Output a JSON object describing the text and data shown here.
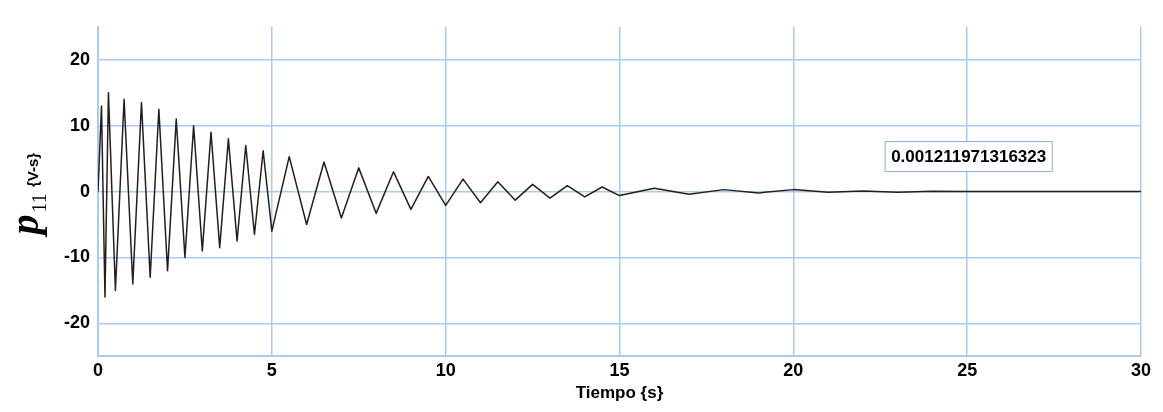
{
  "chart_data": {
    "type": "line",
    "xlabel": "Tiempo {s}",
    "ylabel": "p$_{11}$ {V-s}",
    "x": [
      0,
      0.1,
      0.2,
      0.3,
      0.5,
      0.75,
      1,
      1.25,
      1.5,
      1.75,
      2,
      2.25,
      2.5,
      2.75,
      3,
      3.25,
      3.5,
      3.75,
      4,
      4.25,
      4.5,
      4.75,
      5,
      5.5,
      6,
      6.5,
      7,
      7.5,
      8,
      8.5,
      9,
      9.5,
      10,
      10.5,
      11,
      11.5,
      12,
      12.5,
      13,
      13.5,
      14,
      14.5,
      15,
      16,
      17,
      18,
      19,
      20,
      21,
      22,
      23,
      24,
      25,
      26,
      27,
      28,
      29,
      30
    ],
    "series": [
      {
        "color": "#231f1c",
        "values": [
          0,
          13,
          -16,
          15,
          -15,
          14,
          -14,
          13.5,
          -13,
          12.5,
          -12,
          11,
          -10,
          10,
          -9,
          9,
          -8.5,
          8,
          -7.5,
          7,
          -6.5,
          6.2,
          -6,
          5.3,
          -5,
          4.5,
          -4,
          3.6,
          -3.3,
          3,
          -2.7,
          2.3,
          -2.1,
          1.9,
          -1.7,
          1.5,
          -1.3,
          1.1,
          -1,
          0.9,
          -0.8,
          0.7,
          -0.6,
          0.5,
          -0.4,
          0.3,
          -0.2,
          0.3,
          -0.1,
          0.1,
          -0.1,
          0.05,
          0,
          0,
          0,
          0,
          0,
          0
        ]
      }
    ],
    "xlim": [
      0,
      30
    ],
    "xticks": [
      0,
      5,
      10,
      15,
      20,
      25,
      30
    ],
    "ylim": [
      -25,
      25
    ],
    "yticks": [
      -20,
      -10,
      0,
      10,
      20
    ],
    "grid": true,
    "legend": false,
    "marker": "none",
    "line_style": "solid",
    "annotations": [
      {
        "text": "0.001211971316323",
        "x": 25,
        "y": 0
      }
    ]
  }
}
